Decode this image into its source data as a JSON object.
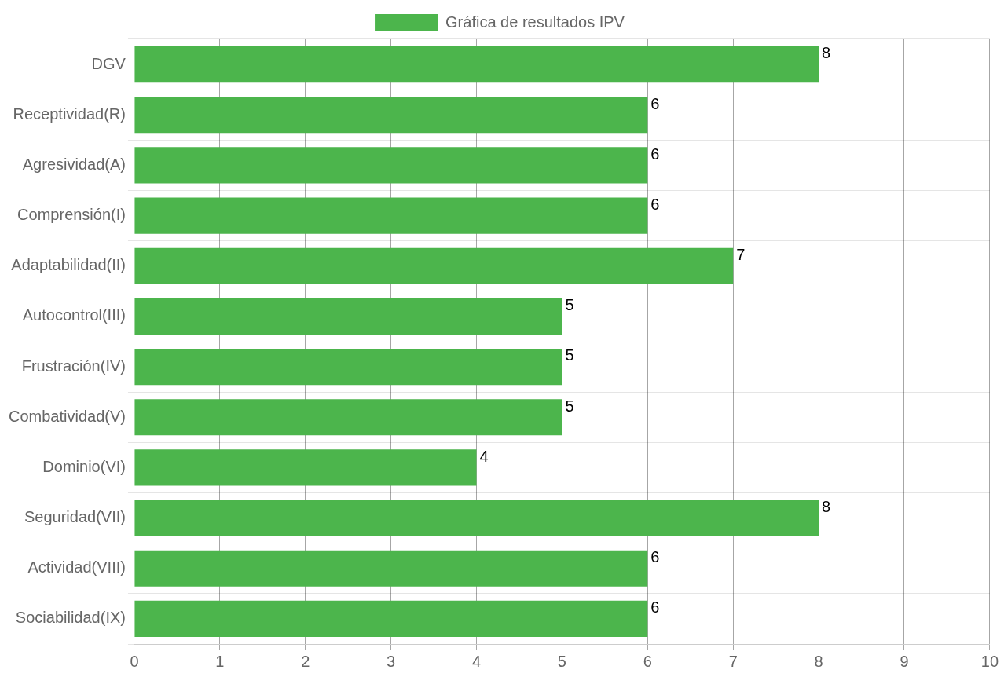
{
  "chart_data": {
    "type": "bar",
    "orientation": "horizontal",
    "categories": [
      "DGV",
      "Receptividad(R)",
      "Agresividad(A)",
      "Comprensión(I)",
      "Adaptabilidad(II)",
      "Autocontrol(III)",
      "Frustración(IV)",
      "Combatividad(V)",
      "Dominio(VI)",
      "Seguridad(VII)",
      "Actividad(VIII)",
      "Sociabilidad(IX)"
    ],
    "series": [
      {
        "name": "Gráfica de resultados IPV",
        "color": "#4cb54c",
        "values": [
          8,
          6,
          6,
          6,
          7,
          5,
          5,
          5,
          4,
          8,
          6,
          6
        ]
      }
    ],
    "xlim": [
      0,
      10
    ],
    "xticks": [
      0,
      1,
      2,
      3,
      4,
      5,
      6,
      7,
      8,
      9,
      10
    ],
    "grid": true,
    "legend": "top",
    "data_labels": true
  }
}
